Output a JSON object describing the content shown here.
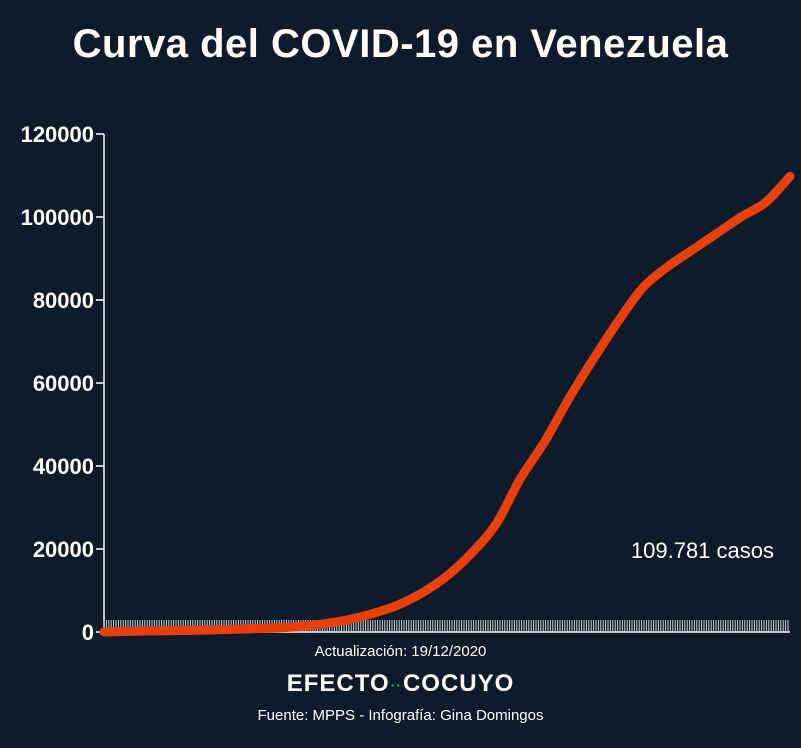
{
  "chart_data": {
    "type": "line",
    "title": "Curva del COVID-19 en Venezuela",
    "ylim": [
      0,
      120000
    ],
    "yticks": [
      0,
      20000,
      40000,
      60000,
      80000,
      100000,
      120000
    ],
    "ytick_labels": [
      "0",
      "20000",
      "40000",
      "60000",
      "80000",
      "100000",
      "120000"
    ],
    "grid": false,
    "legend": "none",
    "line_color": "#e8400c",
    "axis_color": "#ffffff",
    "annotation": "109.781 casos",
    "series": [
      {
        "values": [
          0,
          150,
          250,
          350,
          450,
          600,
          800,
          1000,
          1300,
          2000,
          3000,
          4500,
          6500,
          9500,
          13500,
          19000,
          26000,
          37000,
          46000,
          56500,
          66000,
          75000,
          83000,
          88000,
          92000,
          96000,
          100000,
          103500,
          109781
        ]
      }
    ]
  },
  "footer": {
    "update_text": "Actualización: 19/12/2020",
    "brand_left": "EFECTO",
    "brand_dots": "··",
    "brand_right": "COCUYO",
    "source_text": "Fuente: MPPS - Infografía: Gina Domingos"
  }
}
